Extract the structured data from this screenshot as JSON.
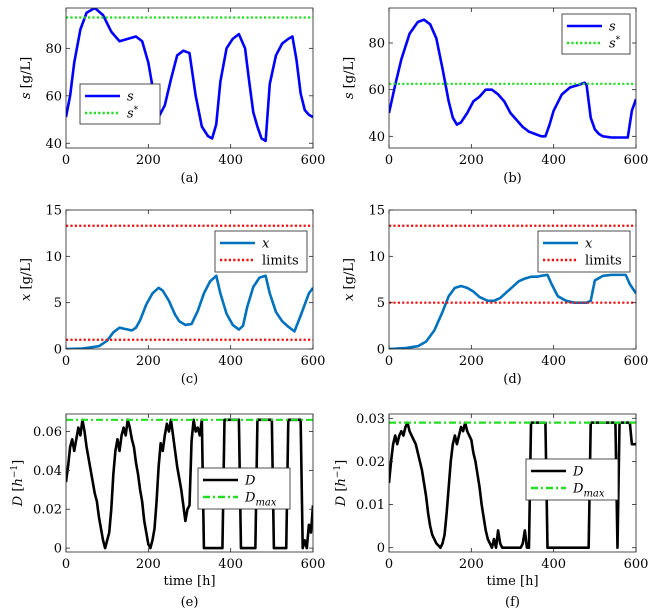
{
  "chart_data": [
    {
      "type": "line",
      "caption": "(a)",
      "xlabel": "",
      "ylabel": "s [g/L]",
      "xlim": [
        0,
        600
      ],
      "ylim": [
        38,
        97
      ],
      "xticks": [
        0,
        200,
        400,
        600
      ],
      "yticks": [
        40,
        60,
        80
      ],
      "legend": {
        "position": "bottom-left",
        "entries": [
          "s",
          "s*"
        ]
      },
      "series": [
        {
          "name": "s",
          "color": "#0000ff",
          "style": "solid",
          "x": [
            0,
            10,
            20,
            35,
            50,
            70,
            90,
            110,
            130,
            150,
            170,
            185,
            200,
            210,
            225,
            240,
            255,
            270,
            285,
            300,
            315,
            330,
            345,
            355,
            365,
            375,
            390,
            405,
            420,
            435,
            445,
            455,
            465,
            475,
            485,
            495,
            510,
            525,
            540,
            550,
            560,
            570,
            580,
            590,
            600
          ],
          "y": [
            51,
            60,
            74,
            88,
            95,
            97,
            94,
            87,
            83,
            84,
            85,
            83,
            74,
            64,
            51,
            56,
            67,
            77,
            79,
            78,
            60,
            47,
            43,
            42,
            48,
            66,
            80,
            84,
            86,
            80,
            66,
            53,
            47,
            42,
            41,
            65,
            77,
            82,
            84,
            85,
            75,
            61,
            54,
            52,
            51
          ]
        },
        {
          "name": "s*",
          "color": "#22dd22",
          "style": "dotted",
          "x": [
            0,
            600
          ],
          "y": [
            93,
            93
          ]
        }
      ]
    },
    {
      "type": "line",
      "caption": "(b)",
      "xlabel": "",
      "ylabel": "s [g/L]",
      "xlim": [
        0,
        600
      ],
      "ylim": [
        35,
        95
      ],
      "xticks": [
        0,
        200,
        400,
        600
      ],
      "yticks": [
        40,
        60,
        80
      ],
      "legend": {
        "position": "top-right",
        "entries": [
          "s",
          "s*"
        ]
      },
      "series": [
        {
          "name": "s",
          "color": "#0000ff",
          "style": "solid",
          "x": [
            0,
            15,
            30,
            50,
            70,
            85,
            100,
            115,
            130,
            145,
            155,
            165,
            175,
            190,
            205,
            220,
            235,
            250,
            265,
            280,
            295,
            310,
            325,
            340,
            355,
            370,
            380,
            390,
            400,
            420,
            440,
            460,
            475,
            480,
            490,
            500,
            510,
            520,
            540,
            560,
            580,
            590,
            600
          ],
          "y": [
            50,
            62,
            73,
            84,
            89,
            90,
            88,
            82,
            69,
            55,
            48,
            45,
            46,
            50,
            55,
            57,
            60,
            60,
            58,
            55,
            50,
            47,
            44,
            42,
            41,
            40,
            40,
            45,
            51,
            58,
            61,
            62,
            63,
            62,
            48,
            43,
            41,
            40,
            39.5,
            39.5,
            39.5,
            51,
            56
          ]
        },
        {
          "name": "s*",
          "color": "#22dd22",
          "style": "dotted",
          "x": [
            0,
            600
          ],
          "y": [
            62.5,
            62.5
          ]
        }
      ]
    },
    {
      "type": "line",
      "caption": "(c)",
      "xlabel": "",
      "ylabel": "x [g/L]",
      "xlim": [
        0,
        600
      ],
      "ylim": [
        0,
        15
      ],
      "xticks": [
        0,
        200,
        400,
        600
      ],
      "yticks": [
        0,
        5,
        10,
        15
      ],
      "legend": {
        "position": "top-right",
        "entries": [
          "x",
          "limits"
        ]
      },
      "series": [
        {
          "name": "x",
          "color": "#0072bd",
          "style": "solid",
          "x": [
            0,
            40,
            80,
            100,
            115,
            130,
            140,
            150,
            160,
            170,
            180,
            195,
            210,
            225,
            235,
            250,
            265,
            275,
            290,
            305,
            320,
            335,
            350,
            365,
            375,
            390,
            405,
            420,
            430,
            440,
            455,
            470,
            485,
            495,
            510,
            525,
            540,
            555,
            570,
            590,
            600
          ],
          "y": [
            0,
            0.05,
            0.3,
            0.9,
            1.8,
            2.3,
            2.2,
            2.1,
            2.0,
            2.3,
            3.1,
            4.8,
            6.0,
            6.6,
            6.3,
            5.2,
            3.7,
            3.0,
            2.6,
            2.7,
            4.1,
            6.0,
            7.3,
            7.9,
            6.0,
            3.8,
            2.6,
            2.1,
            2.5,
            4.5,
            6.7,
            7.7,
            7.9,
            6.0,
            4.0,
            3.0,
            2.4,
            1.9,
            3.6,
            6.0,
            6.6
          ]
        },
        {
          "name": "limits",
          "color": "#ee1111",
          "style": "dotted",
          "x": [
            0,
            600
          ],
          "y": [
            13.3,
            13.3
          ]
        },
        {
          "name": "limits",
          "color": "#ee1111",
          "style": "dotted",
          "x": [
            0,
            600
          ],
          "y": [
            1.0,
            1.0
          ]
        }
      ]
    },
    {
      "type": "line",
      "caption": "(d)",
      "xlabel": "",
      "ylabel": "x [g/L]",
      "xlim": [
        0,
        600
      ],
      "ylim": [
        0,
        15
      ],
      "xticks": [
        0,
        200,
        400,
        600
      ],
      "yticks": [
        0,
        5,
        10,
        15
      ],
      "legend": {
        "position": "top-right",
        "entries": [
          "x",
          "limits"
        ]
      },
      "series": [
        {
          "name": "x",
          "color": "#0072bd",
          "style": "solid",
          "x": [
            0,
            40,
            70,
            90,
            110,
            130,
            145,
            160,
            175,
            190,
            205,
            220,
            240,
            255,
            270,
            285,
            300,
            315,
            330,
            345,
            360,
            370,
            385,
            395,
            410,
            430,
            450,
            470,
            480,
            490,
            500,
            520,
            540,
            560,
            575,
            585,
            600
          ],
          "y": [
            0,
            0.1,
            0.3,
            0.8,
            2.0,
            4.0,
            5.7,
            6.6,
            6.8,
            6.6,
            6.2,
            5.6,
            5.2,
            5.2,
            5.5,
            6.1,
            6.7,
            7.3,
            7.6,
            7.8,
            7.8,
            7.9,
            8.0,
            7.0,
            5.7,
            5.2,
            5.0,
            5.0,
            5.0,
            5.2,
            7.4,
            7.9,
            8.0,
            8.0,
            8.0,
            7.0,
            6.0
          ]
        },
        {
          "name": "limits",
          "color": "#ee1111",
          "style": "dotted",
          "x": [
            0,
            600
          ],
          "y": [
            13.3,
            13.3
          ]
        },
        {
          "name": "limits",
          "color": "#ee1111",
          "style": "dotted",
          "x": [
            0,
            600
          ],
          "y": [
            5.0,
            5.0
          ]
        }
      ]
    },
    {
      "type": "line",
      "caption": "(e)",
      "xlabel": "time [h]",
      "ylabel": "D [h^-1]",
      "xlim": [
        0,
        600
      ],
      "ylim": [
        -0.002,
        0.069
      ],
      "xticks": [
        0,
        200,
        400,
        600
      ],
      "yticks": [
        0,
        0.02,
        0.04,
        0.06
      ],
      "legend": {
        "position": "center-right",
        "entries": [
          "D",
          "D_max"
        ]
      },
      "series": [
        {
          "name": "D",
          "color": "#000000",
          "style": "solid",
          "x": [
            0,
            5,
            10,
            15,
            20,
            25,
            30,
            35,
            40,
            45,
            50,
            55,
            60,
            65,
            70,
            75,
            80,
            85,
            90,
            95,
            100,
            105,
            110,
            115,
            120,
            125,
            130,
            135,
            140,
            145,
            150,
            155,
            160,
            165,
            170,
            175,
            180,
            185,
            190,
            195,
            200,
            205,
            210,
            215,
            220,
            225,
            230,
            235,
            240,
            245,
            250,
            255,
            260,
            265,
            270,
            275,
            280,
            285,
            290,
            295,
            300,
            305,
            310,
            315,
            320,
            325,
            330,
            335,
            340,
            345,
            350,
            355,
            360,
            365,
            370,
            375,
            380,
            385,
            390,
            395,
            400,
            405,
            410,
            415,
            420,
            425,
            430,
            435,
            440,
            445,
            450,
            455,
            460,
            465,
            470,
            475,
            480,
            485,
            490,
            495,
            500,
            505,
            510,
            515,
            520,
            525,
            530,
            535,
            540,
            545,
            550,
            555,
            560,
            565,
            570,
            575,
            580,
            585,
            590,
            595,
            600
          ],
          "y": [
            0.034,
            0.042,
            0.052,
            0.056,
            0.05,
            0.056,
            0.062,
            0.058,
            0.066,
            0.06,
            0.052,
            0.046,
            0.04,
            0.034,
            0.028,
            0.024,
            0.016,
            0.01,
            0.004,
            0.0,
            0.004,
            0.008,
            0.02,
            0.038,
            0.05,
            0.056,
            0.05,
            0.058,
            0.062,
            0.058,
            0.066,
            0.062,
            0.056,
            0.052,
            0.044,
            0.038,
            0.03,
            0.024,
            0.014,
            0.008,
            0.002,
            0.0,
            0.004,
            0.01,
            0.024,
            0.042,
            0.054,
            0.05,
            0.058,
            0.064,
            0.06,
            0.066,
            0.058,
            0.05,
            0.042,
            0.036,
            0.03,
            0.022,
            0.014,
            0.02,
            0.022,
            0.055,
            0.066,
            0.06,
            0.062,
            0.058,
            0.066,
            0.0,
            0.0,
            0.0,
            0.0,
            0.0,
            0.0,
            0.0,
            0.0,
            0.0,
            0.0,
            0.066,
            0.066,
            0.066,
            0.066,
            0.066,
            0.066,
            0.066,
            0.066,
            0.0,
            0.0,
            0.0,
            0.0,
            0.0,
            0.0,
            0.0,
            0.0,
            0.066,
            0.066,
            0.066,
            0.066,
            0.066,
            0.066,
            0.066,
            0.066,
            0.0,
            0.0,
            0.0,
            0.0,
            0.0,
            0.0,
            0.0,
            0.066,
            0.066,
            0.066,
            0.066,
            0.066,
            0.066,
            0.066,
            0.0,
            0.004,
            0.0,
            0.012,
            0.008,
            0.022
          ]
        },
        {
          "name": "D_max",
          "color": "#22dd22",
          "style": "dashdot",
          "x": [
            0,
            600
          ],
          "y": [
            0.066,
            0.066
          ]
        }
      ]
    },
    {
      "type": "line",
      "caption": "(f)",
      "xlabel": "time [h]",
      "ylabel": "D [h^-1]",
      "xlim": [
        0,
        600
      ],
      "ylim": [
        -0.001,
        0.031
      ],
      "xticks": [
        0,
        200,
        400,
        600
      ],
      "yticks": [
        0,
        0.01,
        0.02,
        0.03
      ],
      "legend": {
        "position": "center-right",
        "entries": [
          "D",
          "D_max"
        ]
      },
      "series": [
        {
          "name": "D",
          "color": "#000000",
          "style": "solid",
          "x": [
            0,
            5,
            10,
            15,
            20,
            25,
            30,
            35,
            40,
            45,
            50,
            55,
            60,
            65,
            70,
            75,
            80,
            85,
            90,
            95,
            100,
            105,
            110,
            115,
            120,
            125,
            130,
            135,
            140,
            145,
            150,
            155,
            160,
            165,
            170,
            175,
            180,
            185,
            190,
            195,
            200,
            205,
            210,
            215,
            220,
            225,
            230,
            235,
            240,
            245,
            250,
            255,
            260,
            265,
            270,
            275,
            280,
            285,
            290,
            295,
            300,
            305,
            310,
            315,
            320,
            325,
            330,
            335,
            340,
            345,
            350,
            355,
            360,
            365,
            370,
            375,
            380,
            385,
            390,
            395,
            400,
            405,
            410,
            415,
            420,
            425,
            430,
            435,
            440,
            445,
            450,
            455,
            460,
            465,
            470,
            475,
            480,
            485,
            490,
            495,
            500,
            505,
            510,
            515,
            520,
            525,
            530,
            535,
            540,
            545,
            550,
            555,
            560,
            565,
            570,
            575,
            580,
            585,
            590,
            595,
            600
          ],
          "y": [
            0.015,
            0.02,
            0.024,
            0.026,
            0.024,
            0.026,
            0.027,
            0.026,
            0.028,
            0.029,
            0.027,
            0.026,
            0.025,
            0.024,
            0.022,
            0.02,
            0.018,
            0.015,
            0.012,
            0.008,
            0.005,
            0.003,
            0.002,
            0.001,
            0.0005,
            0.0,
            0.001,
            0.003,
            0.008,
            0.014,
            0.02,
            0.024,
            0.026,
            0.024,
            0.026,
            0.028,
            0.027,
            0.029,
            0.027,
            0.026,
            0.025,
            0.022,
            0.02,
            0.017,
            0.014,
            0.01,
            0.007,
            0.004,
            0.002,
            0.001,
            0.0,
            0.002,
            0.0,
            0.004,
            0.001,
            0.0,
            0.0,
            0.0,
            0.0,
            0.0,
            0.0,
            0.0,
            0.0,
            0.0,
            0.0,
            0.001,
            0.004,
            0.0,
            0.0,
            0.029,
            0.029,
            0.029,
            0.029,
            0.029,
            0.029,
            0.029,
            0.029,
            0.0,
            0.0,
            0.0,
            0.0,
            0.0,
            0.0,
            0.0,
            0.0,
            0.0,
            0.0,
            0.0,
            0.0,
            0.0,
            0.0,
            0.0,
            0.0,
            0.0,
            0.0,
            0.0,
            0.0,
            0.0,
            0.029,
            0.029,
            0.029,
            0.029,
            0.029,
            0.029,
            0.029,
            0.029,
            0.029,
            0.029,
            0.029,
            0.029,
            0.029,
            0.0,
            0.029,
            0.029,
            0.029,
            0.029,
            0.029,
            0.029,
            0.024,
            0.024,
            0.024
          ]
        },
        {
          "name": "D_max",
          "color": "#22dd22",
          "style": "dashdot",
          "x": [
            0,
            600
          ],
          "y": [
            0.029,
            0.029
          ]
        }
      ]
    }
  ]
}
